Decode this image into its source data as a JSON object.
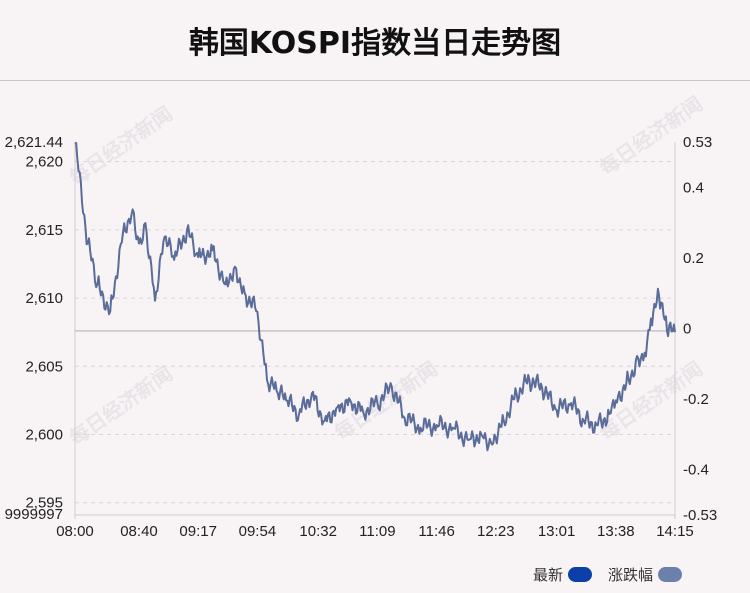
{
  "title": "韩国KOSPI指数当日走势图",
  "watermark": "每日经济新闻",
  "chart_data": {
    "type": "line",
    "x_ticks": [
      "08:00",
      "08:40",
      "09:17",
      "09:54",
      "10:32",
      "11:09",
      "11:46",
      "12:23",
      "13:01",
      "13:38",
      "14:15"
    ],
    "y_left_ticks": [
      "2,621.44",
      "2,620",
      "2,615",
      "2,610",
      "2,605",
      "2,600",
      "2,595",
      "9999997"
    ],
    "y_right_ticks": [
      "0.53",
      "0.4",
      "0.2",
      "0",
      "-0.2",
      "-0.4",
      "-0.53"
    ],
    "ylim": [
      2594.1,
      2621.44
    ],
    "y_right_lim": [
      -0.53,
      0.53
    ],
    "baseline": 2607.6,
    "grid": true,
    "legend_position": "bottom-right",
    "series": [
      {
        "name": "最新",
        "color": "#0c3fa8",
        "x": [
          "08:00",
          "08:08",
          "08:14",
          "08:22",
          "08:30",
          "08:36",
          "08:40",
          "08:44",
          "08:50",
          "08:56",
          "09:02",
          "09:10",
          "09:17",
          "09:26",
          "09:34",
          "09:40",
          "09:46",
          "09:54",
          "10:00",
          "10:06",
          "10:12",
          "10:20",
          "10:28",
          "10:36",
          "10:44",
          "10:52",
          "11:00",
          "11:09",
          "11:18",
          "11:26",
          "11:36",
          "11:46",
          "11:56",
          "12:06",
          "12:14",
          "12:20",
          "12:28",
          "12:36",
          "12:44",
          "12:52",
          "13:01",
          "13:10",
          "13:18",
          "13:26",
          "13:34",
          "13:38",
          "13:46",
          "13:52",
          "13:56",
          "14:00",
          "14:05",
          "14:10",
          "14:15"
        ],
        "values": [
          2621.4,
          2614.0,
          2611.0,
          2609.0,
          2614.8,
          2616.5,
          2614.0,
          2615.5,
          2609.8,
          2614.5,
          2612.8,
          2615.0,
          2613.0,
          2613.5,
          2611.0,
          2612.3,
          2610.4,
          2609.0,
          2604.0,
          2603.2,
          2602.5,
          2601.5,
          2603.0,
          2601.0,
          2602.0,
          2602.5,
          2601.7,
          2602.3,
          2603.5,
          2601.2,
          2600.5,
          2600.7,
          2600.5,
          2599.6,
          2600.0,
          2599.4,
          2601.0,
          2603.0,
          2604.0,
          2603.4,
          2601.8,
          2602.3,
          2601.0,
          2600.7,
          2601.5,
          2602.5,
          2604.0,
          2605.6,
          2606.0,
          2608.5,
          2610.2,
          2607.6,
          2607.5
        ]
      },
      {
        "name": "涨跌幅",
        "color": "#6b80ab"
      }
    ]
  }
}
